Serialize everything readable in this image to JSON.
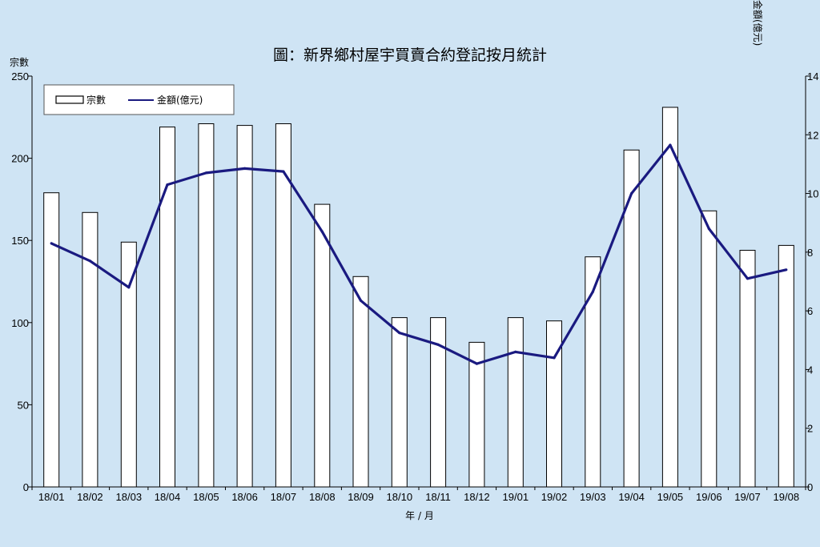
{
  "chart_data": {
    "type": "bar",
    "title": "圖：新界鄉村屋宇買賣合約登記按月統計",
    "xlabel": "年 / 月",
    "ylabel": "宗數",
    "y2label": "金額(億元)",
    "categories": [
      "18/01",
      "18/02",
      "18/03",
      "18/04",
      "18/05",
      "18/06",
      "18/07",
      "18/08",
      "18/09",
      "18/10",
      "18/11",
      "18/12",
      "19/01",
      "19/02",
      "19/03",
      "19/04",
      "19/05",
      "19/06",
      "19/07",
      "19/08"
    ],
    "series": [
      {
        "name": "宗數",
        "type": "bar",
        "axis": "left",
        "values": [
          179,
          167,
          149,
          219,
          221,
          220,
          221,
          172,
          128,
          103,
          103,
          88,
          103,
          101,
          140,
          205,
          231,
          168,
          144,
          147
        ]
      },
      {
        "name": "金額(億元)",
        "type": "line",
        "axis": "right",
        "values": [
          8.3,
          7.7,
          6.8,
          10.3,
          10.7,
          10.85,
          10.75,
          8.7,
          6.35,
          5.25,
          4.85,
          4.2,
          4.6,
          4.4,
          6.65,
          10.0,
          11.65,
          8.8,
          7.1,
          7.4
        ]
      }
    ],
    "ylim": [
      0,
      250
    ],
    "y2lim": [
      0,
      14
    ],
    "yticks": [
      0,
      50,
      100,
      150,
      200,
      250
    ],
    "y2ticks": [
      0,
      2,
      4,
      6,
      8,
      10,
      12,
      14
    ],
    "grid": false,
    "legend": "top-left",
    "colors": {
      "background": "#cfe4f4",
      "bar_fill": "#ffffff",
      "bar_stroke": "#000000",
      "line": "#1a1a80",
      "axis": "#000000"
    }
  }
}
